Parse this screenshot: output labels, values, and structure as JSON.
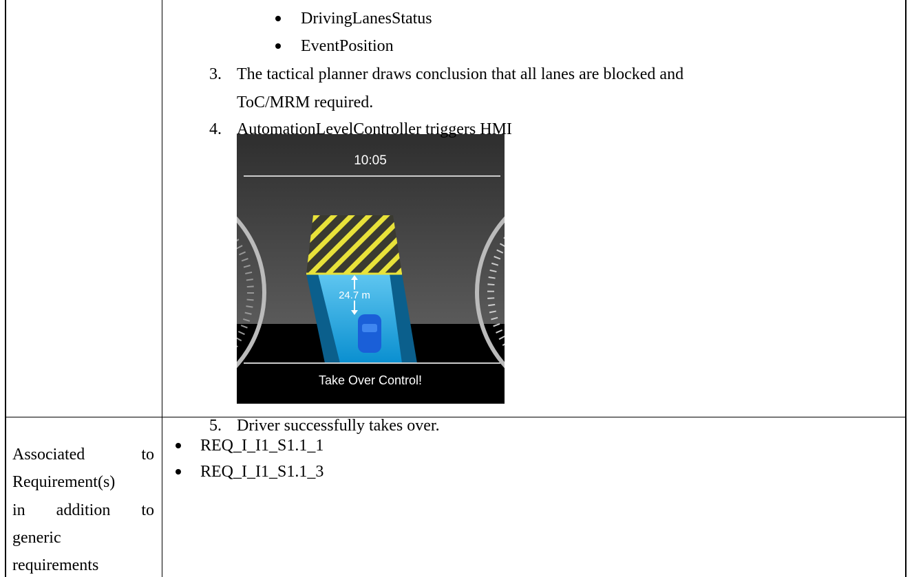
{
  "steps": {
    "bullets": [
      "DrivingLanesStatus",
      "EventPosition"
    ],
    "items": [
      {
        "number": "3.",
        "lines": [
          "The tactical planner draws conclusion that all lanes are blocked and",
          "ToC/MRM required."
        ]
      },
      {
        "number": "4.",
        "lines": [
          "AutomationLevelController triggers HMI"
        ]
      },
      {
        "number": "5.",
        "lines": [
          "Driver successfully takes over."
        ]
      }
    ]
  },
  "hmi": {
    "clock": "10:05",
    "distance": "24.7 m",
    "message": "Take Over Control!"
  },
  "requirements": {
    "label_lines": [
      "Associated to",
      "Requirement(s)",
      "in addition to",
      "generic",
      "requirements"
    ],
    "items": [
      "REQ_I_I1_S1.1_1",
      "REQ_I_I1_S1.1_3"
    ]
  }
}
